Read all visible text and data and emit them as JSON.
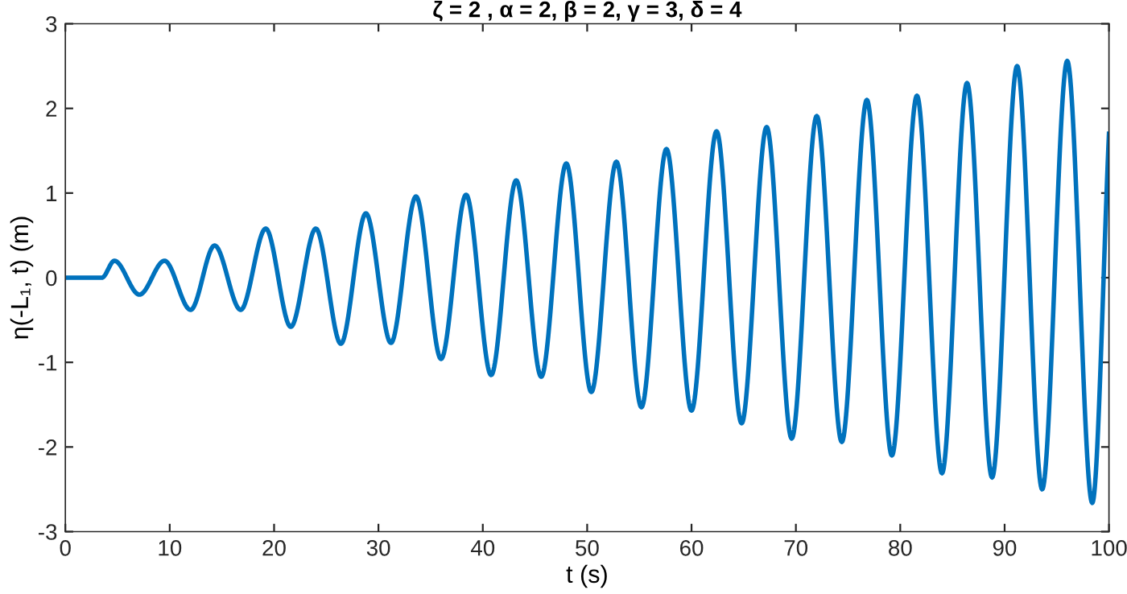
{
  "chart_data": {
    "type": "line",
    "title": "ζ = 2 , α = 2, β = 2, γ = 3, δ = 4",
    "xlabel": "t (s)",
    "ylabel": "η(-L₁, t) (m)",
    "xlim": [
      0,
      100
    ],
    "ylim": [
      -3,
      3
    ],
    "xticks": [
      0,
      10,
      20,
      30,
      40,
      50,
      60,
      70,
      80,
      90,
      100
    ],
    "yticks": [
      -3,
      -2,
      -1,
      0,
      1,
      2,
      3
    ],
    "grid": false,
    "legend": false,
    "series": [
      {
        "color": "#0072bd",
        "x": [
          0,
          3.5,
          4.7,
          7.1,
          9.5,
          12,
          14.3,
          16.8,
          19.2,
          21.6,
          24,
          26.4,
          28.8,
          31.2,
          33.6,
          36,
          38.4,
          40.8,
          43.2,
          45.6,
          48,
          50.4,
          52.8,
          55.2,
          57.6,
          60,
          62.4,
          64.8,
          67.2,
          69.6,
          72,
          74.4,
          76.8,
          79.2,
          81.6,
          84,
          86.4,
          88.8,
          91.2,
          93.6,
          96,
          98.4,
          100
        ],
        "values": [
          0,
          0,
          0.2,
          -0.2,
          0.2,
          -0.38,
          0.38,
          -0.38,
          0.58,
          -0.58,
          0.58,
          -0.78,
          0.76,
          -0.77,
          0.96,
          -0.96,
          0.98,
          -1.15,
          1.15,
          -1.17,
          1.35,
          -1.35,
          1.37,
          -1.53,
          1.52,
          -1.57,
          1.73,
          -1.72,
          1.78,
          -1.9,
          1.91,
          -1.94,
          2.1,
          -2.1,
          2.15,
          -2.31,
          2.3,
          -2.36,
          2.5,
          -2.5,
          2.56,
          -2.66,
          1.7
        ]
      }
    ]
  }
}
